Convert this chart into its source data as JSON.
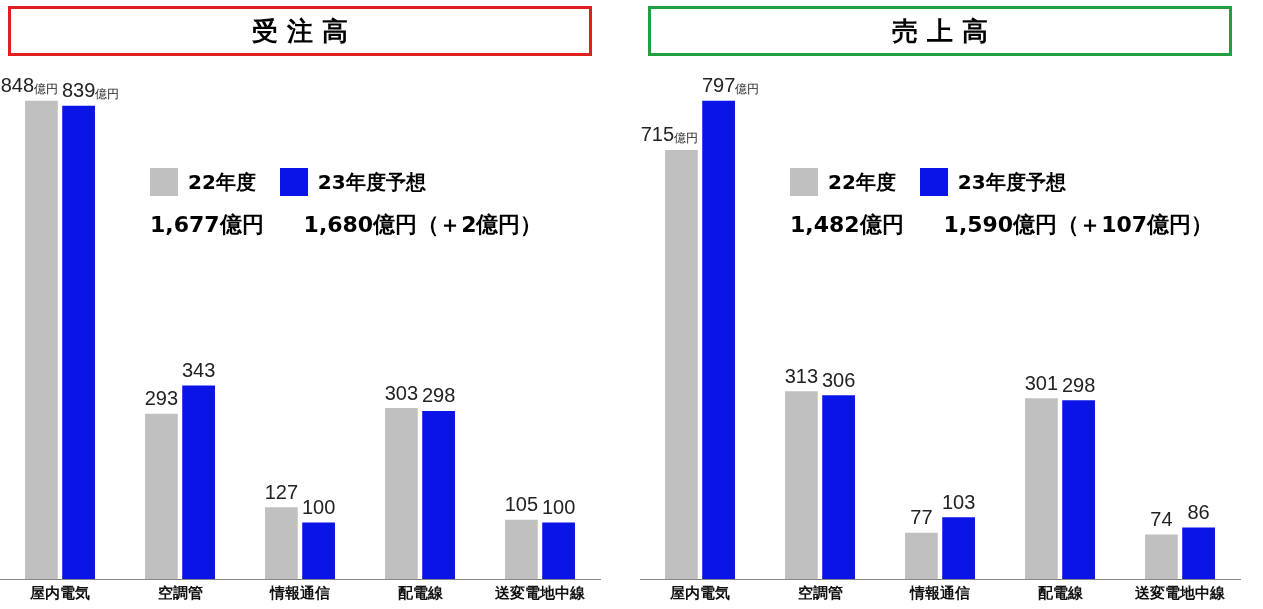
{
  "chart_data": [
    {
      "type": "bar",
      "title": "受 注 高",
      "categories": [
        "屋内電気",
        "空調管",
        "情報通信",
        "配電線",
        "送変電地中線"
      ],
      "series": [
        {
          "name": "22年度",
          "color": "#c0c0c0",
          "values": [
            848,
            293,
            127,
            303,
            105
          ],
          "value_labels": [
            "848億円",
            "293",
            "127",
            "303",
            "105"
          ]
        },
        {
          "name": "23年度予想",
          "color": "#0a14e6",
          "values": [
            839,
            343,
            100,
            298,
            100
          ],
          "value_labels": [
            "839億円",
            "343",
            "100",
            "298",
            "100"
          ]
        }
      ],
      "annotations": [
        "1,677億円",
        "1,680億円（＋2億円）"
      ],
      "legend": "top right",
      "grid": false,
      "tick_labels": "x"
    },
    {
      "type": "bar",
      "title": "売 上 高",
      "categories": [
        "屋内電気",
        "空調管",
        "情報通信",
        "配電線",
        "送変電地中線"
      ],
      "series": [
        {
          "name": "22年度",
          "color": "#c0c0c0",
          "values": [
            715,
            313,
            77,
            301,
            74
          ],
          "value_labels": [
            "715億円",
            "313",
            "77",
            "301",
            "74"
          ]
        },
        {
          "name": "23年度予想",
          "color": "#0a14e6",
          "values": [
            797,
            306,
            103,
            298,
            86
          ],
          "value_labels": [
            "797億円",
            "306",
            "103",
            "298",
            "86"
          ]
        }
      ],
      "annotations": [
        "1,482億円",
        "1,590億円（＋107億円）"
      ],
      "legend": "top right",
      "grid": false,
      "tick_labels": "x"
    }
  ]
}
